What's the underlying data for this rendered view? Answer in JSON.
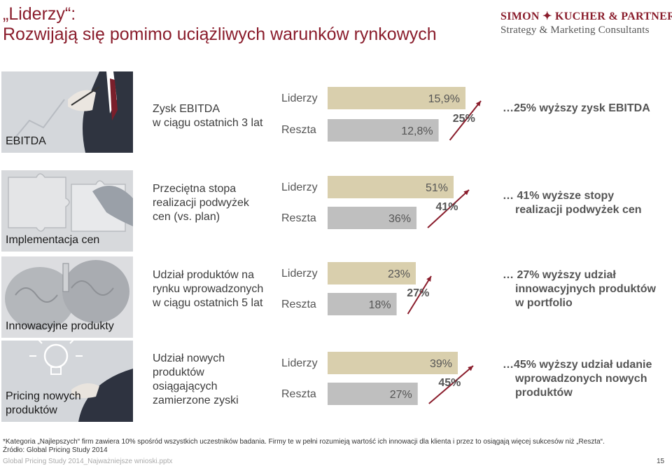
{
  "header": {
    "title_line1": "„Liderzy“:",
    "title_line2": "Rozwijają się pomimo uciążliwych warunków rynkowych",
    "logo_line1": "SIMON ✦ KUCHER & PARTNERS",
    "logo_line2": "Strategy & Marketing Consultants"
  },
  "rows": [
    {
      "image_label": [
        "EBITDA"
      ],
      "description": [
        "Zysk EBITDA",
        "w ciągu ostatnich 3 lat"
      ],
      "label_leaders": "Liderzy",
      "label_rest": "Reszta",
      "conclusion": [
        "…25% wyższy zysk EBITDA"
      ]
    },
    {
      "image_label": [
        "Implementacja cen"
      ],
      "description": [
        "Przeciętna stopa",
        "realizacji podwyżek",
        "cen (vs. plan)"
      ],
      "label_leaders": "Liderzy",
      "label_rest": "Reszta",
      "conclusion": [
        "… 41% wyższe stopy",
        "realizacji podwyżek cen"
      ]
    },
    {
      "image_label": [
        "Innowacyjne produkty"
      ],
      "description": [
        "Udział produktów na",
        "rynku wprowadzonych",
        "w ciągu ostatnich 5 lat"
      ],
      "label_leaders": "Liderzy",
      "label_rest": "Reszta",
      "conclusion": [
        "… 27% wyższy udział",
        "innowacyjnych produktów",
        "w portfolio"
      ]
    },
    {
      "image_label": [
        "Pricing nowych",
        "produktów"
      ],
      "description": [
        "Udział nowych",
        "produktów",
        "osiągających",
        "zamierzone zyski"
      ],
      "label_leaders": "Liderzy",
      "label_rest": "Reszta",
      "conclusion": [
        "…45% wyższy udział udanie",
        "wprowadzonych nowych",
        "produktów"
      ]
    }
  ],
  "chart_data": [
    {
      "type": "bar",
      "categories": [
        "Liderzy",
        "Reszta"
      ],
      "values": [
        15.9,
        12.8
      ],
      "value_labels": [
        "15,9%",
        "12,8%"
      ],
      "difference_label": "25%"
    },
    {
      "type": "bar",
      "categories": [
        "Liderzy",
        "Reszta"
      ],
      "values": [
        51,
        36
      ],
      "value_labels": [
        "51%",
        "36%"
      ],
      "difference_label": "41%"
    },
    {
      "type": "bar",
      "categories": [
        "Liderzy",
        "Reszta"
      ],
      "values": [
        23,
        18
      ],
      "value_labels": [
        "23%",
        "18%"
      ],
      "difference_label": "27%"
    },
    {
      "type": "bar",
      "categories": [
        "Liderzy",
        "Reszta"
      ],
      "values": [
        39,
        27
      ],
      "value_labels": [
        "39%",
        "27%"
      ],
      "difference_label": "45%"
    }
  ],
  "colors": {
    "title": "#8a1d2c",
    "bar_leaders": "#d9cfad",
    "bar_rest": "#bfbfbf",
    "arrow": "#8a1d2c"
  },
  "footer": {
    "footnote": "*Kategoria „Najlepszych“ firm zawiera 10% spośród wszystkich uczestników badania. Firmy te w pełni rozumieją wartość ich innowacji dla klienta i przez to osiągają więcej sukcesów niż „Reszta“.",
    "source": "Źródło: Global Pricing Study 2014",
    "file_name": "Global Pricing Study 2014_Najważniejsze wnioski.pptx",
    "page_number": "15"
  }
}
